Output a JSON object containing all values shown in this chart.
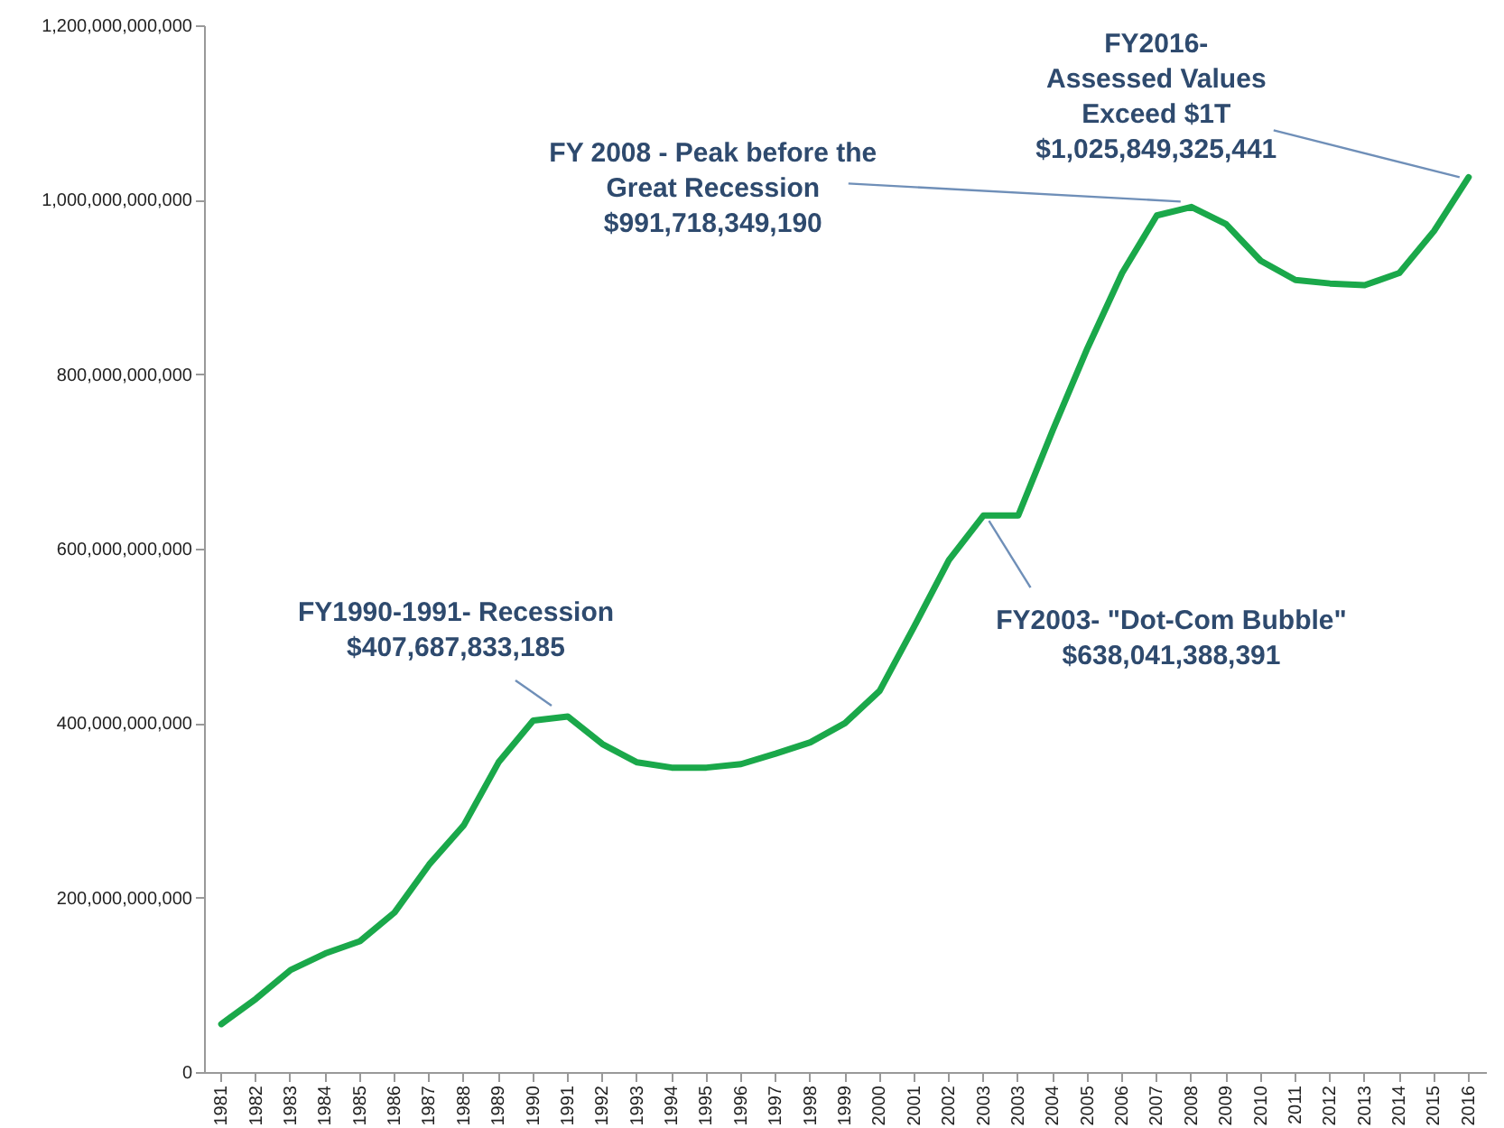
{
  "chart_data": {
    "type": "line",
    "categories": [
      "1981",
      "1982",
      "1983",
      "1984",
      "1985",
      "1986",
      "1987",
      "1988",
      "1989",
      "1990",
      "1991",
      "1992",
      "1993",
      "1994",
      "1995",
      "1996",
      "1997",
      "1998",
      "1999",
      "2000",
      "2001",
      "2002",
      "2003",
      "2003",
      "2004",
      "2005",
      "2006",
      "2007",
      "2008",
      "2009",
      "2010",
      "2011",
      "2012",
      "2013",
      "2014",
      "2015",
      "2016"
    ],
    "values": [
      55000000000,
      84000000000,
      117000000000,
      136000000000,
      150000000000,
      183000000000,
      238000000000,
      283000000000,
      355000000000,
      403000000000,
      407687833185,
      376000000000,
      355000000000,
      349000000000,
      349000000000,
      353000000000,
      365000000000,
      378000000000,
      400000000000,
      437000000000,
      511000000000,
      587000000000,
      638041388391,
      638041388391,
      736000000000,
      830000000000,
      916000000000,
      982000000000,
      991718349190,
      972000000000,
      930000000000,
      908000000000,
      904000000000,
      902000000000,
      916000000000,
      964000000000,
      1025849325441
    ],
    "color": "#1aa84a",
    "ylim": [
      0,
      1200000000000
    ],
    "yticks": [
      0,
      {
        "value": 200000000000,
        "label": "200,000,000,000"
      },
      {
        "value": 400000000000,
        "label": "400,000,000,000"
      },
      {
        "value": 600000000000,
        "label": "600,000,000,000"
      },
      {
        "value": 800000000000,
        "label": "800,000,000,000"
      },
      {
        "value": 1000000000000,
        "label": "1,000,000,000,000"
      },
      {
        "value": 1200000000000,
        "label": "1,200,000,000,000"
      }
    ],
    "grid": false,
    "annotations": [
      {
        "text": "FY1990-1991- Recession\n$407,687,833,185",
        "x": "1991",
        "y": 407687833185
      },
      {
        "text": "FY2003- \"Dot-Com Bubble\"\n$638,041,388,391",
        "x": "2003",
        "y": 638041388391
      },
      {
        "text": "FY 2008  - Peak before the\nGreat Recession\n$991,718,349,190",
        "x": "2008",
        "y": 991718349190
      },
      {
        "text": "FY2016-\nAssessed Values\nExceed $1T\n$1,025,849,325,441",
        "x": "2016",
        "y": 1025849325441
      }
    ]
  }
}
